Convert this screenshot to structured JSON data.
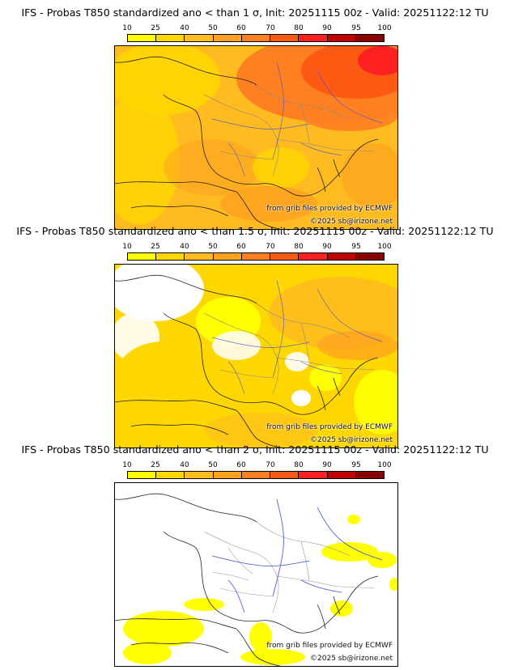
{
  "colorbar": {
    "ticks": [
      "10",
      "25",
      "40",
      "50",
      "60",
      "70",
      "80",
      "90",
      "95",
      "100"
    ],
    "colors": [
      "#ffff00",
      "#ffd700",
      "#ffbb20",
      "#ffa020",
      "#ff8020",
      "#ff5a14",
      "#ff2020",
      "#c00000",
      "#8b0000"
    ]
  },
  "panels": [
    {
      "title": "IFS - Probas T850  standardized ano < than 1 σ, Init: 20251115 00z - Valid: 20251122:12 TU",
      "source_text": "from grib files provided by ECMWF",
      "copyright": "©2025 sb@irizone.net"
    },
    {
      "title": "IFS - Probas T850  standardized ano < than 1.5 σ, Init: 20251115 00z - Valid: 20251122:12 TU",
      "source_text": "from grib files provided by ECMWF",
      "copyright": "©2025 sb@irizone.net"
    },
    {
      "title": "IFS - Probas T850  standardized ano < than 2 σ, Init: 20251115 00z - Valid: 20251122:12 TU",
      "source_text": "from grib files provided by ECMWF",
      "copyright": "©2025 sb@irizone.net"
    }
  ]
}
